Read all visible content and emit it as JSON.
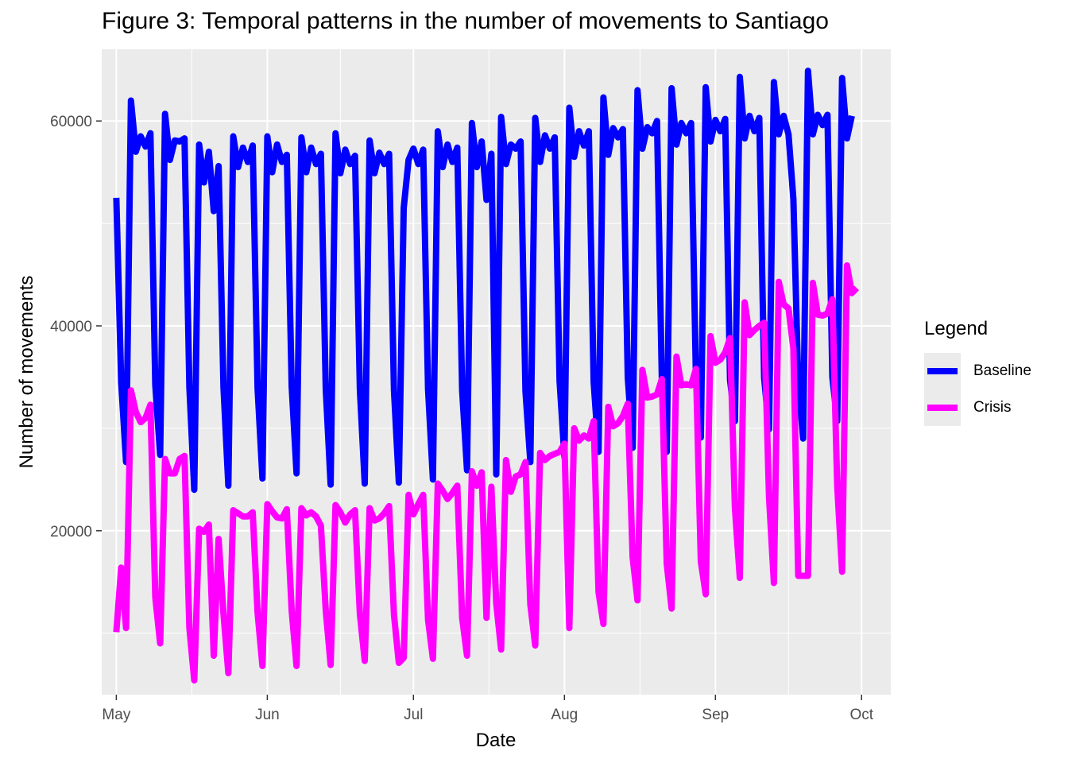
{
  "title": "Figure 3: Temporal patterns in the number of movements to Santiago",
  "chart_data": {
    "type": "line",
    "xlabel": "Date",
    "ylabel": "Number of movements",
    "x_ticks": [
      "May",
      "Jun",
      "Jul",
      "Aug",
      "Sep",
      "Oct"
    ],
    "x_tick_dates": [
      "2020-05-01",
      "2020-06-01",
      "2020-07-01",
      "2020-08-01",
      "2020-09-01",
      "2020-10-01"
    ],
    "y_ticks": [
      20000,
      40000,
      60000
    ],
    "ylim": [
      4000,
      67000
    ],
    "xlim": [
      "2020-04-28",
      "2020-10-07"
    ],
    "grid": true,
    "legend": {
      "title": "Legend",
      "position": "right"
    },
    "start_date": "2020-05-01",
    "series": [
      {
        "name": "Baseline",
        "color": "#0000ff",
        "values": [
          52500,
          34500,
          26700,
          62000,
          57000,
          58500,
          57500,
          58800,
          34200,
          27400,
          60700,
          56200,
          58100,
          58000,
          58300,
          34000,
          24000,
          57700,
          54000,
          57000,
          51200,
          55600,
          34000,
          24400,
          58500,
          55500,
          57400,
          56000,
          57600,
          33900,
          25100,
          58500,
          55000,
          57700,
          56000,
          56700,
          34100,
          25600,
          58400,
          55000,
          57400,
          55800,
          56800,
          33800,
          24500,
          58800,
          54900,
          57200,
          55800,
          56600,
          33800,
          24600,
          58100,
          54900,
          56900,
          55800,
          56800,
          33700,
          24700,
          51500,
          56200,
          57300,
          55800,
          57200,
          33800,
          25000,
          59000,
          55500,
          57700,
          56000,
          57400,
          33700,
          25900,
          59800,
          55500,
          58000,
          52300,
          56800,
          25500,
          60400,
          55800,
          57700,
          57300,
          58000,
          33600,
          26700,
          60300,
          56000,
          58600,
          57300,
          58400,
          34600,
          27200,
          61300,
          56500,
          59000,
          57600,
          59000,
          34500,
          27700,
          62300,
          56700,
          59300,
          58400,
          59200,
          35000,
          28100,
          63000,
          57300,
          59400,
          58800,
          60000,
          34600,
          27700,
          63200,
          57700,
          59800,
          58800,
          59800,
          34800,
          29100,
          63300,
          58000,
          60100,
          59000,
          60200,
          34700,
          30700,
          64300,
          58300,
          60500,
          59000,
          60300,
          34900,
          29900,
          63800,
          58700,
          60500,
          58700,
          52400,
          34500,
          29000,
          64900,
          58700,
          60600,
          59600,
          60600,
          35000,
          30700,
          64200,
          58300,
          60500
        ]
      },
      {
        "name": "Crisis",
        "color": "#ff00ff",
        "values": [
          10100,
          16400,
          10500,
          33700,
          31600,
          30600,
          31000,
          32300,
          13500,
          9000,
          27000,
          25600,
          25600,
          27000,
          27300,
          10500,
          5400,
          20200,
          19900,
          20600,
          7800,
          19200,
          11900,
          6100,
          22000,
          21700,
          21400,
          21400,
          21800,
          12000,
          6800,
          22600,
          21900,
          21300,
          21200,
          22100,
          12200,
          6800,
          22200,
          21500,
          21800,
          21400,
          20500,
          12200,
          6900,
          22500,
          21800,
          20800,
          21600,
          22000,
          11900,
          7300,
          22200,
          21000,
          21200,
          21700,
          22400,
          11800,
          7100,
          7600,
          23500,
          21600,
          22600,
          23500,
          11300,
          7500,
          24600,
          23900,
          23100,
          23700,
          24400,
          11500,
          7800,
          25800,
          24400,
          25700,
          11500,
          24300,
          12900,
          8400,
          26900,
          23800,
          25300,
          25500,
          26700,
          12800,
          8800,
          27600,
          26900,
          27300,
          27500,
          27700,
          28500,
          10500,
          30000,
          28800,
          29300,
          29000,
          30700,
          14000,
          10900,
          32100,
          30200,
          30500,
          31200,
          32400,
          17400,
          13200,
          35700,
          33000,
          33100,
          33300,
          34800,
          16800,
          12400,
          37000,
          34200,
          34300,
          34200,
          35800,
          17000,
          13800,
          39000,
          36400,
          36700,
          37400,
          38800,
          22200,
          15400,
          42300,
          39100,
          39600,
          40000,
          40300,
          23300,
          14900,
          44300,
          42100,
          41700,
          37800,
          15600,
          15600,
          15600,
          44200,
          41100,
          41000,
          41200,
          42600,
          24400,
          16000,
          45900,
          43200,
          43700
        ]
      }
    ]
  }
}
